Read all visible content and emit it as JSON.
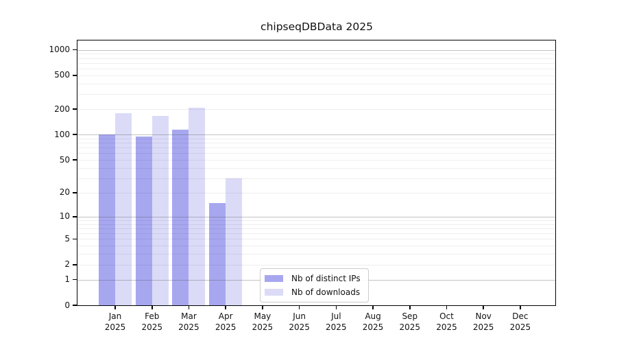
{
  "title": "chipseqDBData 2025",
  "chart_data": {
    "type": "bar",
    "title": "chipseqDBData 2025",
    "categories": [
      "Jan",
      "Feb",
      "Mar",
      "Apr",
      "May",
      "Jun",
      "Jul",
      "Aug",
      "Sep",
      "Oct",
      "Nov",
      "Dec"
    ],
    "category_year": "2025",
    "series": [
      {
        "name": "Nb of distinct IPs",
        "color": "#a7a7f0",
        "values": [
          100,
          95,
          115,
          15,
          0,
          0,
          0,
          0,
          0,
          0,
          0,
          0
        ]
      },
      {
        "name": "Nb of downloads",
        "color": "#dbdbf8",
        "values": [
          180,
          165,
          210,
          30,
          0,
          0,
          0,
          0,
          0,
          0,
          0,
          0
        ]
      }
    ],
    "xlabel": "",
    "ylabel": "",
    "yscale": "log1p",
    "y_ticks": [
      0,
      1,
      2,
      5,
      10,
      20,
      50,
      100,
      200,
      500,
      1000
    ],
    "ylim": [
      0,
      1200
    ],
    "grid": "horizontal",
    "legend_position": "bottom-center"
  },
  "colors": {
    "bar_distinct_ips": "#a7a7f0",
    "bar_downloads": "#dbdbf8",
    "grid_major": "#b3b3b3",
    "grid_minor": "#ededed",
    "spine": "#000000",
    "text": "#111111",
    "legend_border": "#cccccc",
    "background": "#ffffff"
  }
}
